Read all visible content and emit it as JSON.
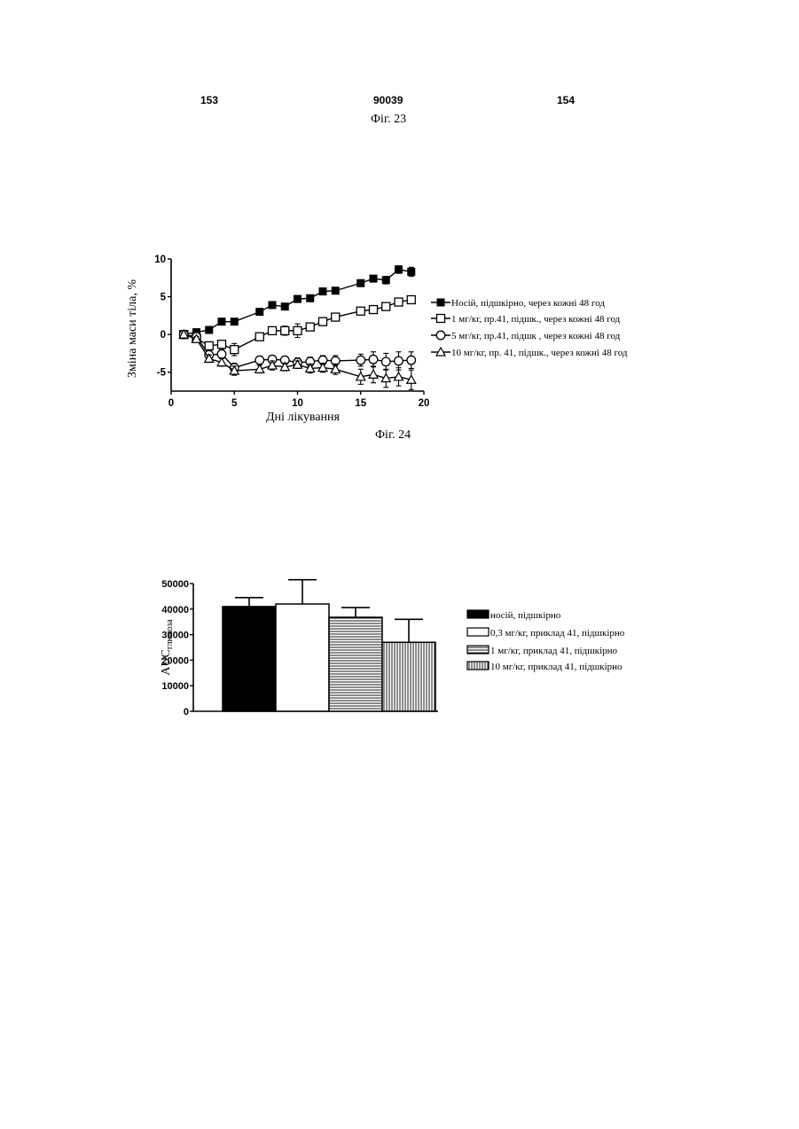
{
  "header": {
    "page_left": "153",
    "doc_number": "90039",
    "page_right": "154"
  },
  "figures": {
    "fig23_caption": "Фіг. 23",
    "fig24_caption": "Фіг. 24"
  },
  "chart_data": [
    {
      "type": "line",
      "title": "",
      "xlabel": "Дні лікування",
      "ylabel": "Зміна маси тіла, %",
      "xlim": [
        0,
        20
      ],
      "ylim": [
        -7.5,
        10
      ],
      "xticks": [
        0,
        5,
        10,
        15,
        20
      ],
      "yticks": [
        10,
        5,
        0,
        -5
      ],
      "ytick_labels": [
        "10",
        "5",
        "0",
        "-5"
      ],
      "grid": false,
      "legend_position": "right",
      "series": [
        {
          "name": "Носій, підшкірно, через кожні 48 год",
          "marker": "filled-square",
          "x": [
            1,
            2,
            3,
            4,
            5,
            7,
            8,
            9,
            10,
            11,
            12,
            13,
            15,
            16,
            17,
            18,
            19
          ],
          "y": [
            0,
            0.3,
            0.6,
            1.7,
            1.7,
            3.0,
            3.9,
            3.7,
            4.7,
            4.8,
            5.7,
            5.8,
            6.8,
            7.4,
            7.2,
            8.6,
            8.3
          ],
          "err": [
            0.2,
            0.2,
            0.2,
            0.3,
            0.3,
            0.3,
            0.3,
            0.3,
            0.3,
            0.3,
            0.4,
            0.3,
            0.4,
            0.4,
            0.5,
            0.5,
            0.6
          ]
        },
        {
          "name": "1 мг/кг, пр.41, підшк., через кожні 48 год",
          "marker": "open-square",
          "x": [
            1,
            2,
            3,
            4,
            5,
            7,
            8,
            9,
            10,
            11,
            12,
            13,
            15,
            16,
            17,
            18,
            19
          ],
          "y": [
            0,
            -0.5,
            -1.5,
            -1.3,
            -2.0,
            -0.3,
            0.5,
            0.5,
            0.5,
            1.0,
            1.7,
            2.3,
            3.1,
            3.3,
            3.7,
            4.3,
            4.6
          ],
          "err": [
            0.2,
            0.3,
            0.5,
            0.4,
            0.8,
            0.4,
            0.4,
            0.6,
            0.9,
            0.5,
            0.5,
            0.4,
            0.4,
            0.4,
            0.4,
            0.4,
            0.5
          ]
        },
        {
          "name": "5 мг/кг, пр.41, підшк , через кожні 48 год",
          "marker": "open-circle",
          "x": [
            1,
            2,
            3,
            4,
            5,
            7,
            8,
            9,
            10,
            11,
            12,
            13,
            15,
            16,
            17,
            18,
            19
          ],
          "y": [
            0,
            -0.3,
            -2.7,
            -2.6,
            -4.4,
            -3.4,
            -3.3,
            -3.4,
            -3.7,
            -3.6,
            -3.4,
            -3.5,
            -3.4,
            -3.3,
            -3.6,
            -3.5,
            -3.4
          ],
          "err": [
            0.2,
            0.3,
            0.6,
            0.6,
            0.6,
            0.5,
            0.5,
            0.5,
            0.6,
            0.6,
            0.6,
            0.7,
            0.8,
            1.0,
            1.1,
            1.2,
            1.1
          ]
        },
        {
          "name": "10 мг/кг, пр. 41, підшк., через кожні 48 год",
          "marker": "open-triangle",
          "x": [
            1,
            2,
            3,
            4,
            5,
            7,
            8,
            9,
            10,
            11,
            12,
            13,
            15,
            16,
            17,
            18,
            19
          ],
          "y": [
            0,
            -0.6,
            -3.2,
            -3.7,
            -4.8,
            -4.6,
            -4.1,
            -4.3,
            -4.0,
            -4.5,
            -4.4,
            -4.6,
            -5.6,
            -5.3,
            -5.8,
            -5.6,
            -6.0
          ],
          "err": [
            0.2,
            0.3,
            0.5,
            0.5,
            0.6,
            0.5,
            0.6,
            0.5,
            0.5,
            0.6,
            0.6,
            0.7,
            1.0,
            1.1,
            1.2,
            1.2,
            1.3
          ]
        }
      ]
    },
    {
      "type": "bar",
      "title": "",
      "xlabel": "",
      "ylabel": "AUCглюкоза",
      "ylabel_main": "AUC",
      "ylabel_sub": "глюкоза",
      "ylim": [
        0,
        50000
      ],
      "yticks": [
        0,
        10000,
        20000,
        30000,
        40000,
        50000
      ],
      "ytick_labels": [
        "0",
        "10000",
        "20000",
        "30000",
        "40000",
        "50000"
      ],
      "legend_position": "right",
      "series": [
        {
          "name": "носій, підшкірно",
          "value": 41000,
          "err_up": 3500,
          "fill": "solid"
        },
        {
          "name": "0,3 мг/кг, приклад 41, підшкірно",
          "value": 42000,
          "err_up": 9500,
          "fill": "white"
        },
        {
          "name": "1 мг/кг, приклад 41, підшкірно",
          "value": 36800,
          "err_up": 3800,
          "fill": "horizontal-lines"
        },
        {
          "name": "10 мг/кг, приклад 41, підшкірно",
          "value": 27000,
          "err_up": 9000,
          "fill": "vertical-lines"
        }
      ]
    }
  ]
}
